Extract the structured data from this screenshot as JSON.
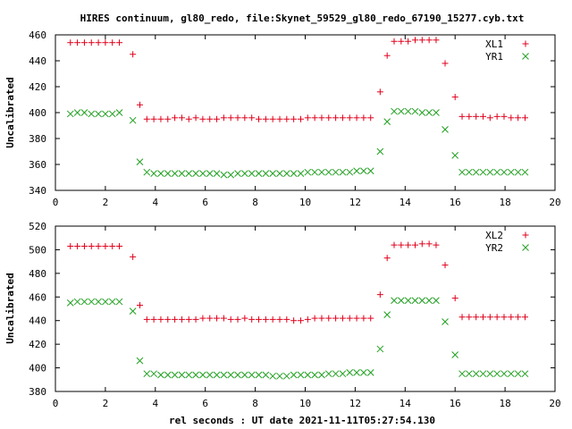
{
  "title": "HIRES continuum, gl80_redo, file:Skynet_59529_gl80_redo_67190_15277.cyb.txt",
  "xlabel": "rel seconds : UT date 2021-11-11T05:27:54.130",
  "colors": {
    "red": "#e0001b",
    "green": "#20a020",
    "axis": "#000000"
  },
  "chart_data": [
    {
      "type": "scatter",
      "ylabel": "Uncalibrated",
      "xlim": [
        0,
        20
      ],
      "ylim": [
        340,
        460
      ],
      "xticks": [
        "0",
        "2",
        "4",
        "6",
        "8",
        "10",
        "12",
        "14",
        "16",
        "18",
        "20"
      ],
      "yticks": [
        "340",
        "360",
        "380",
        "400",
        "420",
        "440",
        "460"
      ],
      "legend_position": "top-right",
      "x": [
        0.6,
        0.88,
        1.16,
        1.44,
        1.72,
        2.0,
        2.28,
        2.56,
        3.1,
        3.38,
        3.66,
        3.94,
        4.22,
        4.5,
        4.78,
        5.06,
        5.34,
        5.62,
        5.9,
        6.18,
        6.46,
        6.74,
        7.02,
        7.3,
        7.58,
        7.86,
        8.14,
        8.42,
        8.7,
        8.98,
        9.26,
        9.54,
        9.82,
        10.1,
        10.38,
        10.66,
        10.94,
        11.22,
        11.5,
        11.78,
        12.06,
        12.34,
        12.62,
        13.0,
        13.28,
        13.56,
        13.84,
        14.12,
        14.4,
        14.68,
        14.96,
        15.24,
        15.6,
        16.0,
        16.28,
        16.56,
        16.84,
        17.12,
        17.4,
        17.68,
        17.96,
        18.24,
        18.52,
        18.8
      ],
      "series": [
        {
          "name": "XL1",
          "marker": "plus",
          "color": "#e0001b",
          "values": [
            454,
            454,
            454,
            454,
            454,
            454,
            454,
            454,
            445,
            406,
            395,
            395,
            395,
            395,
            396,
            396,
            395,
            396,
            395,
            395,
            395,
            396,
            396,
            396,
            396,
            396,
            395,
            395,
            395,
            395,
            395,
            395,
            395,
            396,
            396,
            396,
            396,
            396,
            396,
            396,
            396,
            396,
            396,
            416,
            444,
            455,
            455,
            455,
            456,
            456,
            456,
            456,
            438,
            412,
            397,
            397,
            397,
            397,
            396,
            397,
            397,
            396,
            396,
            396
          ]
        },
        {
          "name": "YR1",
          "marker": "cross",
          "color": "#20a020",
          "values": [
            399,
            400,
            400,
            399,
            399,
            399,
            399,
            400,
            394,
            362,
            354,
            353,
            353,
            353,
            353,
            353,
            353,
            353,
            353,
            353,
            353,
            352,
            352,
            353,
            353,
            353,
            353,
            353,
            353,
            353,
            353,
            353,
            353,
            354,
            354,
            354,
            354,
            354,
            354,
            354,
            355,
            355,
            355,
            370,
            393,
            401,
            401,
            401,
            401,
            400,
            400,
            400,
            387,
            367,
            354,
            354,
            354,
            354,
            354,
            354,
            354,
            354,
            354,
            354
          ]
        }
      ]
    },
    {
      "type": "scatter",
      "ylabel": "Uncalibrated",
      "xlim": [
        0,
        20
      ],
      "ylim": [
        380,
        520
      ],
      "xticks": [
        "0",
        "2",
        "4",
        "6",
        "8",
        "10",
        "12",
        "14",
        "16",
        "18",
        "20"
      ],
      "yticks": [
        "380",
        "400",
        "420",
        "440",
        "460",
        "480",
        "500",
        "520"
      ],
      "legend_position": "top-right",
      "x": [
        0.6,
        0.88,
        1.16,
        1.44,
        1.72,
        2.0,
        2.28,
        2.56,
        3.1,
        3.38,
        3.66,
        3.94,
        4.22,
        4.5,
        4.78,
        5.06,
        5.34,
        5.62,
        5.9,
        6.18,
        6.46,
        6.74,
        7.02,
        7.3,
        7.58,
        7.86,
        8.14,
        8.42,
        8.7,
        8.98,
        9.26,
        9.54,
        9.82,
        10.1,
        10.38,
        10.66,
        10.94,
        11.22,
        11.5,
        11.78,
        12.06,
        12.34,
        12.62,
        13.0,
        13.28,
        13.56,
        13.84,
        14.12,
        14.4,
        14.68,
        14.96,
        15.24,
        15.6,
        16.0,
        16.28,
        16.56,
        16.84,
        17.12,
        17.4,
        17.68,
        17.96,
        18.24,
        18.52,
        18.8
      ],
      "series": [
        {
          "name": "XL2",
          "marker": "plus",
          "color": "#e0001b",
          "values": [
            503,
            503,
            503,
            503,
            503,
            503,
            503,
            503,
            494,
            453,
            441,
            441,
            441,
            441,
            441,
            441,
            441,
            441,
            442,
            442,
            442,
            442,
            441,
            441,
            442,
            441,
            441,
            441,
            441,
            441,
            441,
            440,
            440,
            441,
            442,
            442,
            442,
            442,
            442,
            442,
            442,
            442,
            442,
            462,
            493,
            504,
            504,
            504,
            504,
            505,
            505,
            504,
            487,
            459,
            443,
            443,
            443,
            443,
            443,
            443,
            443,
            443,
            443,
            443
          ]
        },
        {
          "name": "YR2",
          "marker": "cross",
          "color": "#20a020",
          "values": [
            455,
            456,
            456,
            456,
            456,
            456,
            456,
            456,
            448,
            406,
            395,
            395,
            394,
            394,
            394,
            394,
            394,
            394,
            394,
            394,
            394,
            394,
            394,
            394,
            394,
            394,
            394,
            394,
            393,
            393,
            393,
            394,
            394,
            394,
            394,
            394,
            395,
            395,
            395,
            396,
            396,
            396,
            396,
            416,
            445,
            457,
            457,
            457,
            457,
            457,
            457,
            457,
            439,
            411,
            395,
            395,
            395,
            395,
            395,
            395,
            395,
            395,
            395,
            395
          ]
        }
      ]
    }
  ]
}
